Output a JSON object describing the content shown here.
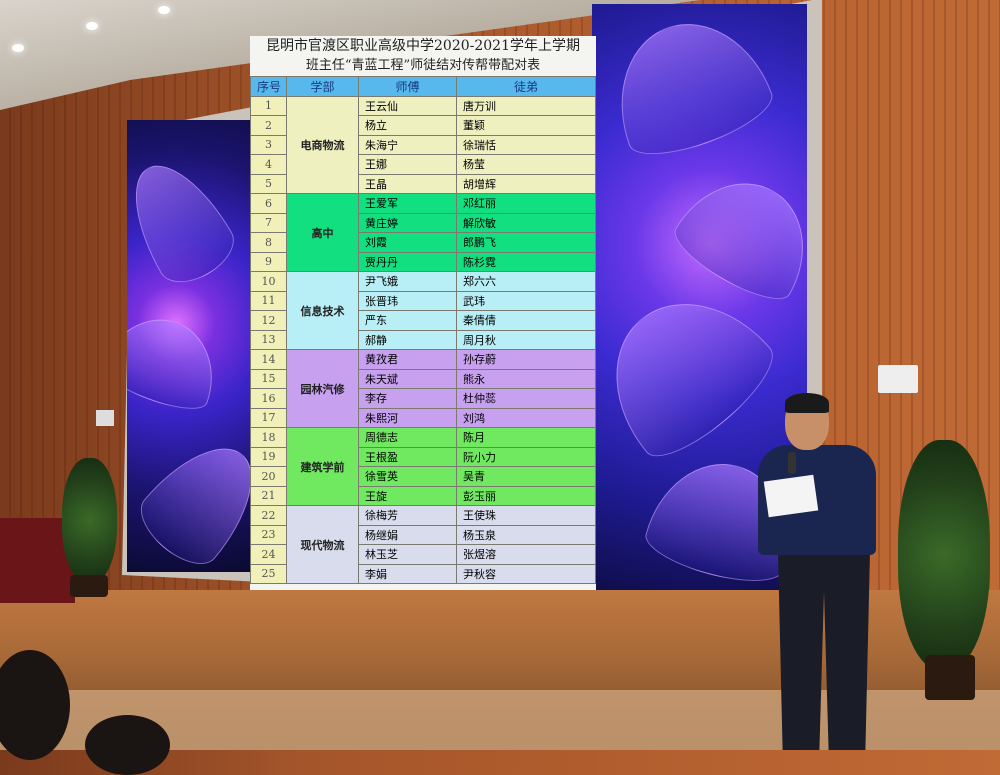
{
  "table": {
    "title_line1": "昆明市官渡区职业高级中学2020-2021学年上学期",
    "title_line2": "班主任“青蓝工程”师徒结对传帮带配对表",
    "headers": {
      "no": "序号",
      "dept": "学部",
      "master": "师傅",
      "apprentice": "徒弟"
    },
    "groups": [
      {
        "dept": "电商物流",
        "color": "#eef0c0",
        "rows": [
          {
            "no": "1",
            "master": "王云仙",
            "apprentice": "唐万训"
          },
          {
            "no": "2",
            "master": "杨立",
            "apprentice": "董颖"
          },
          {
            "no": "3",
            "master": "朱海宁",
            "apprentice": "徐瑞恬"
          },
          {
            "no": "4",
            "master": "王娜",
            "apprentice": "杨莹"
          },
          {
            "no": "5",
            "master": "王晶",
            "apprentice": "胡增辉"
          }
        ]
      },
      {
        "dept": "高中",
        "color": "#12e080",
        "rows": [
          {
            "no": "6",
            "master": "王爱军",
            "apprentice": "邓红丽"
          },
          {
            "no": "7",
            "master": "黄庄婷",
            "apprentice": "解欣敏"
          },
          {
            "no": "8",
            "master": "刘霞",
            "apprentice": "郎鹏飞"
          },
          {
            "no": "9",
            "master": "贾丹丹",
            "apprentice": "陈杉霓"
          }
        ]
      },
      {
        "dept": "信息技术",
        "color": "#b8eef6",
        "rows": [
          {
            "no": "10",
            "master": "尹飞娥",
            "apprentice": "郑六六"
          },
          {
            "no": "11",
            "master": "张晋玮",
            "apprentice": "武玮"
          },
          {
            "no": "12",
            "master": "严东",
            "apprentice": "秦倩倩"
          },
          {
            "no": "13",
            "master": "郝静",
            "apprentice": "周月秋"
          }
        ]
      },
      {
        "dept": "园林汽修",
        "color": "#c8a0f0",
        "rows": [
          {
            "no": "14",
            "master": "黄孜君",
            "apprentice": "孙存蔚"
          },
          {
            "no": "15",
            "master": "朱天斌",
            "apprentice": "熊永"
          },
          {
            "no": "16",
            "master": "李存",
            "apprentice": "杜仲蕊"
          },
          {
            "no": "17",
            "master": "朱熙河",
            "apprentice": "刘鸿"
          }
        ]
      },
      {
        "dept": "建筑学前",
        "color": "#70e860",
        "rows": [
          {
            "no": "18",
            "master": "周德志",
            "apprentice": "陈月"
          },
          {
            "no": "19",
            "master": "王根盈",
            "apprentice": "阮小力"
          },
          {
            "no": "20",
            "master": "徐雪英",
            "apprentice": "吴青"
          },
          {
            "no": "21",
            "master": "王旋",
            "apprentice": "彭玉丽"
          }
        ]
      },
      {
        "dept": "现代物流",
        "color": "#d8dcec",
        "rows": [
          {
            "no": "22",
            "master": "徐梅芳",
            "apprentice": "王使珠"
          },
          {
            "no": "23",
            "master": "杨继娟",
            "apprentice": "杨玉泉"
          },
          {
            "no": "24",
            "master": "林玉芝",
            "apprentice": "张煜溶"
          },
          {
            "no": "25",
            "master": "李娟",
            "apprentice": "尹秋容"
          }
        ]
      }
    ]
  }
}
